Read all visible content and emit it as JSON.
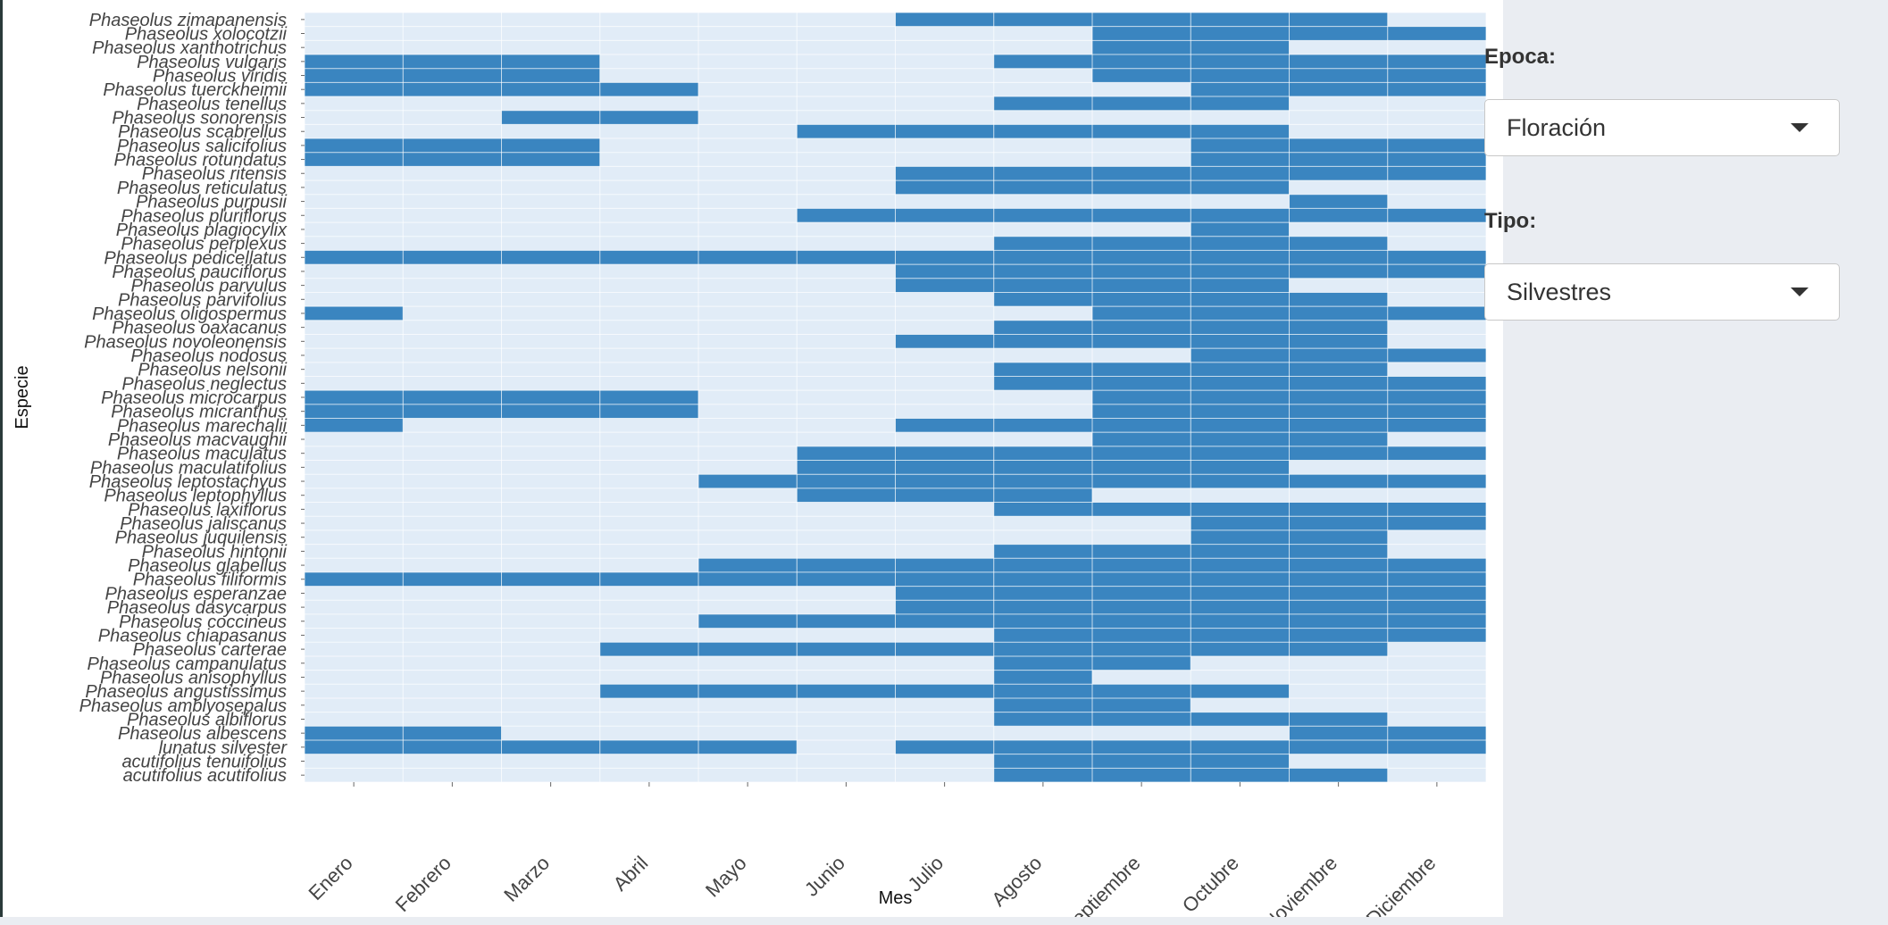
{
  "controls": {
    "epoca": {
      "label": "Epoca:",
      "value": "Floración"
    },
    "tipo": {
      "label": "Tipo:",
      "value": "Silvestres"
    }
  },
  "colors": {
    "panel": "#e1ecf7",
    "tile": "#3a85c0",
    "grid": "#ffffff"
  },
  "chart_data": {
    "type": "heatmap",
    "xlabel": "Mes",
    "ylabel": "Especie",
    "months": [
      "Enero",
      "Febrero",
      "Marzo",
      "Abril",
      "Mayo",
      "Junio",
      "Julio",
      "Agosto",
      "Septiembre",
      "Octubre",
      "Noviembre",
      "Diciembre"
    ],
    "species": [
      {
        "name": "Phaseolus zimapanensis",
        "months": [
          7,
          8,
          9,
          10,
          11
        ]
      },
      {
        "name": "Phaseolus xolocotzii",
        "months": [
          9,
          10,
          11,
          12
        ]
      },
      {
        "name": "Phaseolus xanthotrichus",
        "months": [
          9,
          10
        ]
      },
      {
        "name": "Phaseolus vulgaris",
        "months": [
          1,
          2,
          3,
          8,
          9,
          10,
          11,
          12
        ]
      },
      {
        "name": "Phaseolus viridis",
        "months": [
          1,
          2,
          3,
          9,
          10,
          11,
          12
        ]
      },
      {
        "name": "Phaseolus tuerckheimii",
        "months": [
          1,
          2,
          3,
          4,
          10,
          11,
          12
        ]
      },
      {
        "name": "Phaseolus tenellus",
        "months": [
          8,
          9,
          10
        ]
      },
      {
        "name": "Phaseolus sonorensis",
        "months": [
          3,
          4
        ]
      },
      {
        "name": "Phaseolus scabrellus",
        "months": [
          6,
          7,
          8,
          9,
          10
        ]
      },
      {
        "name": "Phaseolus salicifolius",
        "months": [
          1,
          2,
          3,
          10,
          11,
          12
        ]
      },
      {
        "name": "Phaseolus rotundatus",
        "months": [
          1,
          2,
          3,
          10,
          11,
          12
        ]
      },
      {
        "name": "Phaseolus ritensis",
        "months": [
          7,
          8,
          9,
          10,
          11,
          12
        ]
      },
      {
        "name": "Phaseolus reticulatus",
        "months": [
          7,
          8,
          9,
          10
        ]
      },
      {
        "name": "Phaseolus purpusii",
        "months": [
          11
        ]
      },
      {
        "name": "Phaseolus pluriflorus",
        "months": [
          6,
          7,
          8,
          9,
          10,
          11,
          12
        ]
      },
      {
        "name": "Phaseolus plagiocylix",
        "months": [
          10
        ]
      },
      {
        "name": "Phaseolus perplexus",
        "months": [
          8,
          9,
          10,
          11
        ]
      },
      {
        "name": "Phaseolus pedicellatus",
        "months": [
          1,
          2,
          3,
          4,
          5,
          6,
          7,
          8,
          9,
          10,
          11,
          12
        ]
      },
      {
        "name": "Phaseolus pauciflorus",
        "months": [
          7,
          8,
          9,
          10,
          11,
          12
        ]
      },
      {
        "name": "Phaseolus parvulus",
        "months": [
          7,
          8,
          9,
          10
        ]
      },
      {
        "name": "Phaseolus parvifolius",
        "months": [
          8,
          9,
          10,
          11
        ]
      },
      {
        "name": "Phaseolus oligospermus",
        "months": [
          1,
          9,
          10,
          11,
          12
        ]
      },
      {
        "name": "Phaseolus oaxacanus",
        "months": [
          8,
          9,
          10,
          11
        ]
      },
      {
        "name": "Phaseolus novoleonensis",
        "months": [
          7,
          8,
          9,
          10,
          11
        ]
      },
      {
        "name": "Phaseolus nodosus",
        "months": [
          10,
          11,
          12
        ]
      },
      {
        "name": "Phaseolus nelsonii",
        "months": [
          8,
          9,
          10,
          11
        ]
      },
      {
        "name": "Phaseolus neglectus",
        "months": [
          8,
          9,
          10,
          11,
          12
        ]
      },
      {
        "name": "Phaseolus microcarpus",
        "months": [
          1,
          2,
          3,
          4,
          9,
          10,
          11,
          12
        ]
      },
      {
        "name": "Phaseolus micranthus",
        "months": [
          1,
          2,
          3,
          4,
          9,
          10,
          11,
          12
        ]
      },
      {
        "name": "Phaseolus marechalii",
        "months": [
          1,
          7,
          8,
          9,
          10,
          11,
          12
        ]
      },
      {
        "name": "Phaseolus macvaughii",
        "months": [
          9,
          10,
          11
        ]
      },
      {
        "name": "Phaseolus maculatus",
        "months": [
          6,
          7,
          8,
          9,
          10,
          11,
          12
        ]
      },
      {
        "name": "Phaseolus maculatifolius",
        "months": [
          6,
          7,
          8,
          9,
          10
        ]
      },
      {
        "name": "Phaseolus leptostachyus",
        "months": [
          5,
          6,
          7,
          8,
          9,
          10,
          11,
          12
        ]
      },
      {
        "name": "Phaseolus leptophyllus",
        "months": [
          6,
          7,
          8
        ]
      },
      {
        "name": "Phaseolus laxiflorus",
        "months": [
          8,
          9,
          10,
          11,
          12
        ]
      },
      {
        "name": "Phaseolus jaliscanus",
        "months": [
          10,
          11,
          12
        ]
      },
      {
        "name": "Phaseolus juquilensis",
        "months": [
          10,
          11
        ]
      },
      {
        "name": "Phaseolus hintonii",
        "months": [
          8,
          9,
          10,
          11
        ]
      },
      {
        "name": "Phaseolus glabellus",
        "months": [
          5,
          6,
          7,
          8,
          9,
          10,
          11,
          12
        ]
      },
      {
        "name": "Phaseolus filiformis",
        "months": [
          1,
          2,
          3,
          4,
          5,
          6,
          7,
          8,
          9,
          10,
          11,
          12
        ]
      },
      {
        "name": "Phaseolus esperanzae",
        "months": [
          7,
          8,
          9,
          10,
          11,
          12
        ]
      },
      {
        "name": "Phaseolus dasycarpus",
        "months": [
          7,
          8,
          9,
          10,
          11,
          12
        ]
      },
      {
        "name": "Phaseolus coccineus",
        "months": [
          5,
          6,
          7,
          8,
          9,
          10,
          11,
          12
        ]
      },
      {
        "name": "Phaseolus chiapasanus",
        "months": [
          8,
          9,
          10,
          11,
          12
        ]
      },
      {
        "name": "Phaseolus carterae",
        "months": [
          4,
          5,
          6,
          7,
          8,
          9,
          10,
          11
        ]
      },
      {
        "name": "Phaseolus campanulatus",
        "months": [
          8,
          9
        ]
      },
      {
        "name": "Phaseolus anisophyllus",
        "months": [
          8
        ]
      },
      {
        "name": "Phaseolus angustissimus",
        "months": [
          4,
          5,
          6,
          7,
          8,
          9,
          10
        ]
      },
      {
        "name": "Phaseolus amblyosepalus",
        "months": [
          8,
          9
        ]
      },
      {
        "name": "Phaseolus albiflorus",
        "months": [
          8,
          9,
          10,
          11
        ]
      },
      {
        "name": "Phaseolus albescens",
        "months": [
          1,
          2,
          11,
          12
        ]
      },
      {
        "name": "lunatus silvester",
        "months": [
          1,
          2,
          3,
          4,
          5,
          7,
          8,
          9,
          10,
          11,
          12
        ]
      },
      {
        "name": "acutifolius tenuifolius",
        "months": [
          8,
          9,
          10
        ]
      },
      {
        "name": "acutifolius acutifolius",
        "months": [
          8,
          9,
          10,
          11
        ]
      }
    ]
  }
}
